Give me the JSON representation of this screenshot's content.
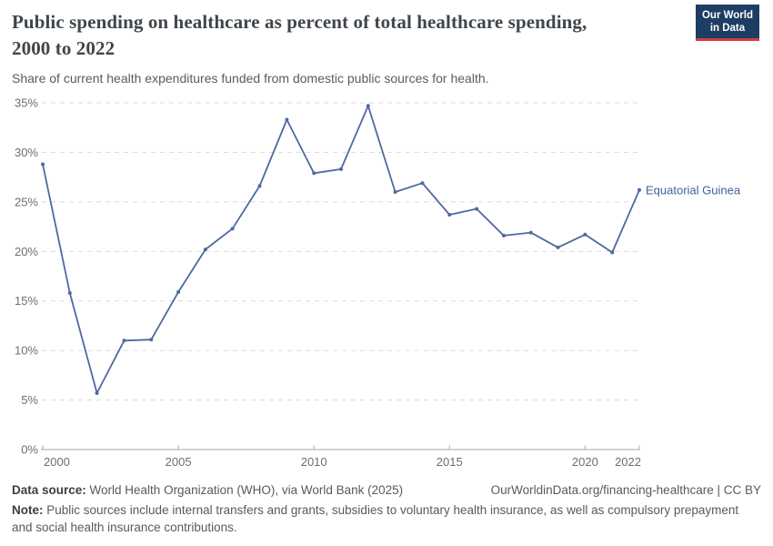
{
  "header": {
    "title": "Public spending on healthcare as percent of total healthcare spending, 2000 to 2022",
    "subtitle": "Share of current health expenditures funded from domestic public sources for health.",
    "logo": {
      "line1": "Our World",
      "line2": "in Data"
    }
  },
  "chart_data": {
    "type": "line",
    "title": "Public spending on healthcare as percent of total healthcare spending, 2000 to 2022",
    "x": [
      2000,
      2001,
      2002,
      2003,
      2004,
      2005,
      2006,
      2007,
      2008,
      2009,
      2010,
      2011,
      2012,
      2013,
      2014,
      2015,
      2016,
      2017,
      2018,
      2019,
      2020,
      2021,
      2022
    ],
    "series": [
      {
        "name": "Equatorial Guinea",
        "color": "#4c6a9e",
        "values": [
          28.8,
          15.8,
          5.7,
          11.0,
          11.1,
          15.9,
          20.2,
          22.3,
          26.6,
          33.3,
          27.9,
          28.3,
          34.7,
          26.0,
          26.9,
          23.7,
          24.3,
          21.6,
          21.9,
          20.4,
          21.7,
          19.9,
          26.2
        ]
      }
    ],
    "xlim": [
      2000,
      2022
    ],
    "ylim": [
      0,
      35
    ],
    "x_ticks": [
      2000,
      2005,
      2010,
      2015,
      2020,
      2022
    ],
    "y_ticks": [
      0,
      5,
      10,
      15,
      20,
      25,
      30,
      35
    ],
    "y_suffix": "%",
    "grid": "horizontal-dashed",
    "legend": "end-of-line-label",
    "end_label": "Equatorial Guinea"
  },
  "footer": {
    "datasource_label": "Data source:",
    "datasource_text": " World Health Organization (WHO), via World Bank (2025)",
    "attribution": "OurWorldinData.org/financing-healthcare | CC BY",
    "note_label": "Note:",
    "note_text": " Public sources include internal transfers and grants, subsidies to voluntary health insurance, as well as compulsory prepayment and social health insurance contributions."
  },
  "colors": {
    "line": "#4c6a9e",
    "end_label": "#3d6399",
    "grid": "#dadada",
    "axis": "#a8a8a8",
    "tick_text": "#6e6e6e",
    "logo_bg": "#1d3d63",
    "logo_red": "#d13d42"
  }
}
